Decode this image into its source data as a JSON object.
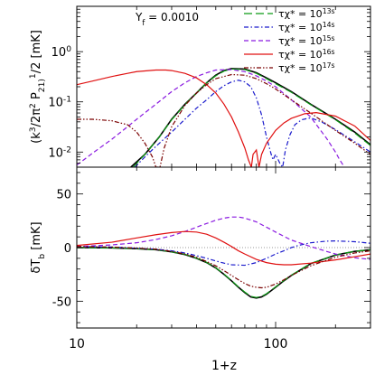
{
  "chart_data": [
    {
      "type": "line",
      "panel": "top",
      "ylabel": "(k^3/2π^2 P_21)^1/2 [mK]",
      "xlabel": "",
      "xscale": "log",
      "yscale": "log",
      "xlim": [
        10,
        300
      ],
      "ylim": [
        0.005,
        8
      ],
      "x_ticks": [
        10,
        100
      ],
      "y_ticks": [
        0.01,
        0.1,
        1
      ],
      "y_tick_labels": [
        "10^-2",
        "10^-1",
        "10^0"
      ],
      "annotation": "Y_f = 0.0010",
      "legend": {
        "placement": "top-right",
        "entries": [
          {
            "label": "τχ* = 10^13s",
            "color": "#0b9a14",
            "style": "long-dash"
          },
          {
            "label": "τχ* = 10^14s",
            "color": "#1a1acc",
            "style": "dash-dot"
          },
          {
            "label": "τχ* = 10^15s",
            "color": "#8a1ae0",
            "style": "dash"
          },
          {
            "label": "τχ* = 10^16s",
            "color": "#e01010",
            "style": "solid"
          },
          {
            "label": "τχ* = 10^17s",
            "color": "#7a0000",
            "style": "dash-dot-dot"
          }
        ]
      },
      "series": [
        {
          "key": "baseline",
          "color": "#000000",
          "style": "solid",
          "x": [
            18.7,
            22,
            26,
            30,
            35,
            40,
            45,
            50,
            55,
            60,
            70,
            80,
            90,
            100,
            120,
            150,
            200,
            250,
            300
          ],
          "y": [
            0.005,
            0.009,
            0.02,
            0.045,
            0.09,
            0.15,
            0.24,
            0.34,
            0.42,
            0.46,
            0.45,
            0.38,
            0.3,
            0.24,
            0.16,
            0.09,
            0.045,
            0.025,
            0.014
          ]
        },
        {
          "key": "1e13",
          "color": "#0b9a14",
          "style": "long-dash",
          "x": [
            19.2,
            22,
            26,
            30,
            35,
            40,
            45,
            50,
            55,
            60,
            70,
            80,
            90,
            100,
            120,
            150,
            200,
            250,
            300
          ],
          "y": [
            0.005,
            0.009,
            0.02,
            0.044,
            0.088,
            0.15,
            0.24,
            0.33,
            0.41,
            0.45,
            0.44,
            0.37,
            0.29,
            0.23,
            0.155,
            0.088,
            0.044,
            0.024,
            0.0135
          ]
        },
        {
          "key": "1e14",
          "color": "#1a1acc",
          "style": "dash-dot",
          "x": [
            19.6,
            22,
            25,
            30,
            35,
            40,
            45,
            50,
            55,
            60,
            65,
            70,
            75,
            80,
            85,
            90,
            95,
            97,
            100,
            105,
            108.5,
            112,
            118,
            125,
            135,
            150,
            170,
            200,
            250,
            300
          ],
          "y": [
            0.005,
            0.008,
            0.013,
            0.025,
            0.045,
            0.075,
            0.11,
            0.16,
            0.21,
            0.25,
            0.27,
            0.25,
            0.2,
            0.12,
            0.055,
            0.02,
            0.009,
            0.007,
            0.009,
            0.006,
            0.005,
            0.011,
            0.022,
            0.035,
            0.044,
            0.048,
            0.04,
            0.028,
            0.016,
            0.01
          ]
        },
        {
          "key": "1e15",
          "color": "#8a1ae0",
          "style": "dash",
          "x": [
            10,
            12,
            15,
            18,
            20,
            25,
            30,
            35,
            40,
            45,
            50,
            60,
            70,
            80,
            90,
            100,
            120,
            150,
            180,
            200,
            210,
            222
          ],
          "y": [
            0.0055,
            0.0095,
            0.018,
            0.032,
            0.045,
            0.09,
            0.16,
            0.24,
            0.32,
            0.38,
            0.43,
            0.44,
            0.4,
            0.33,
            0.26,
            0.2,
            0.11,
            0.05,
            0.019,
            0.01,
            0.007,
            0.005
          ]
        },
        {
          "key": "1e16",
          "color": "#e01010",
          "style": "solid",
          "x": [
            10,
            12,
            15,
            18,
            20,
            25,
            28,
            30,
            35,
            40,
            45,
            50,
            55,
            60,
            65,
            70,
            73,
            75.5,
            77,
            80,
            82.5,
            85,
            90,
            100,
            110,
            120,
            140,
            160,
            200,
            250,
            300
          ],
          "y": [
            0.22,
            0.26,
            0.32,
            0.37,
            0.4,
            0.43,
            0.43,
            0.42,
            0.37,
            0.3,
            0.22,
            0.15,
            0.09,
            0.05,
            0.025,
            0.012,
            0.007,
            0.005,
            0.009,
            0.011,
            0.005,
            0.009,
            0.015,
            0.027,
            0.038,
            0.047,
            0.058,
            0.061,
            0.052,
            0.033,
            0.017
          ]
        },
        {
          "key": "1e17",
          "color": "#7a0000",
          "style": "dash-dot-dot",
          "x": [
            10,
            12,
            15,
            18,
            20,
            22,
            24,
            25,
            25.6,
            26.2,
            27.5,
            30,
            35,
            40,
            45,
            50,
            60,
            70,
            80,
            90,
            100,
            120,
            150,
            200,
            250,
            300
          ],
          "y": [
            0.045,
            0.045,
            0.042,
            0.035,
            0.025,
            0.015,
            0.008,
            0.005,
            0.005,
            0.005,
            0.012,
            0.032,
            0.085,
            0.15,
            0.22,
            0.29,
            0.35,
            0.34,
            0.29,
            0.23,
            0.18,
            0.11,
            0.06,
            0.027,
            0.015,
            0.009
          ]
        }
      ]
    },
    {
      "type": "line",
      "panel": "bottom",
      "ylabel": "δT_b [mK]",
      "xlabel": "1+z",
      "xscale": "log",
      "yscale": "linear",
      "xlim": [
        10,
        300
      ],
      "ylim": [
        -75,
        75
      ],
      "x_ticks": [
        10,
        100
      ],
      "x_tick_labels": [
        "10",
        "100"
      ],
      "y_ticks": [
        -50,
        0,
        50
      ],
      "y_tick_labels": [
        "-50",
        "0",
        "50"
      ],
      "zero_line": true,
      "series": [
        {
          "key": "baseline",
          "color": "#000000",
          "style": "solid",
          "x": [
            10,
            15,
            20,
            25,
            30,
            35,
            40,
            45,
            50,
            55,
            60,
            65,
            70,
            75,
            80,
            85,
            90,
            100,
            110,
            120,
            150,
            200,
            250,
            300
          ],
          "y": [
            0,
            -0.3,
            -1,
            -2,
            -4,
            -6.5,
            -10,
            -14,
            -19,
            -25,
            -31,
            -37,
            -42,
            -46,
            -47,
            -46,
            -43.5,
            -37,
            -31,
            -26,
            -15,
            -7,
            -3.5,
            -2
          ]
        },
        {
          "key": "1e13",
          "color": "#0b9a14",
          "style": "long-dash",
          "x": [
            10,
            15,
            20,
            25,
            30,
            35,
            40,
            45,
            50,
            55,
            60,
            65,
            70,
            75,
            80,
            85,
            90,
            100,
            110,
            120,
            150,
            200,
            250,
            300
          ],
          "y": [
            0,
            -0.3,
            -1,
            -2,
            -4,
            -6.3,
            -9.8,
            -13.8,
            -18.8,
            -24.7,
            -30.7,
            -36.6,
            -41.5,
            -45.5,
            -46.5,
            -45.5,
            -43,
            -36.6,
            -30.7,
            -25.7,
            -14.8,
            -6.9,
            -3.4,
            -2
          ]
        },
        {
          "key": "1e14",
          "color": "#1a1acc",
          "style": "dash-dot",
          "x": [
            10,
            15,
            20,
            25,
            30,
            35,
            40,
            45,
            50,
            55,
            60,
            70,
            80,
            90,
            100,
            110,
            120,
            130,
            150,
            180,
            200,
            250,
            300
          ],
          "y": [
            1,
            0.5,
            -0.5,
            -1.5,
            -3,
            -5,
            -7.5,
            -10,
            -12.5,
            -14.5,
            -16,
            -16.5,
            -14,
            -10,
            -6,
            -3,
            0,
            2,
            4.5,
            6,
            6.2,
            5.5,
            4
          ]
        },
        {
          "key": "1e15",
          "color": "#8a1ae0",
          "style": "dash",
          "x": [
            10,
            15,
            20,
            25,
            30,
            35,
            40,
            45,
            50,
            55,
            60,
            65,
            70,
            80,
            90,
            100,
            110,
            120,
            150,
            180,
            200,
            250,
            300
          ],
          "y": [
            1,
            2.5,
            4.5,
            7.5,
            11,
            15,
            19,
            22.5,
            25.5,
            27.5,
            28.5,
            28.5,
            27.5,
            24,
            19,
            14.5,
            10.5,
            7,
            1,
            -3.5,
            -6,
            -9.5,
            -11
          ]
        },
        {
          "key": "1e16",
          "color": "#e01010",
          "style": "solid",
          "x": [
            10,
            15,
            20,
            25,
            30,
            35,
            40,
            45,
            50,
            55,
            60,
            65,
            70,
            80,
            90,
            100,
            110,
            120,
            150,
            200,
            250,
            300
          ],
          "y": [
            2,
            5,
            9,
            12,
            14,
            15,
            14.5,
            12.5,
            9,
            5,
            1,
            -3,
            -6,
            -11,
            -14,
            -15.5,
            -16,
            -16,
            -14.5,
            -11.5,
            -8.5,
            -6
          ]
        },
        {
          "key": "1e17",
          "color": "#7a0000",
          "style": "dash-dot-dot",
          "x": [
            10,
            15,
            20,
            25,
            30,
            35,
            40,
            45,
            50,
            55,
            60,
            65,
            70,
            75,
            80,
            85,
            90,
            100,
            110,
            120,
            150,
            200,
            250,
            300
          ],
          "y": [
            1,
            0.5,
            -0.5,
            -1.5,
            -3.5,
            -6,
            -9,
            -13,
            -17,
            -21.5,
            -26,
            -30,
            -33.5,
            -36,
            -37,
            -37.5,
            -37,
            -34,
            -30,
            -26,
            -17,
            -9,
            -5,
            -3
          ]
        }
      ]
    }
  ]
}
